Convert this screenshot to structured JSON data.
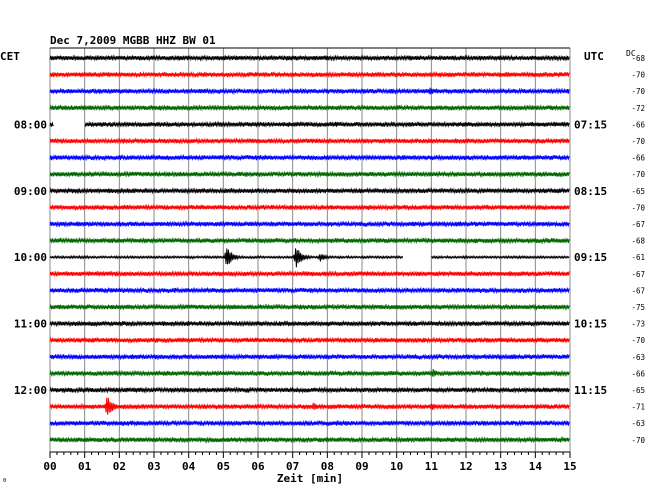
{
  "chart_data": {
    "type": "line",
    "title": "Dec 7,2009   MGBB HHZ BW 01",
    "left_timezone": "CET",
    "right_timezone": "UTC",
    "dc_label": "DC",
    "xlabel": "Zeit [min]",
    "xlim": [
      0,
      15
    ],
    "x_ticks": [
      "00",
      "01",
      "02",
      "03",
      "04",
      "05",
      "06",
      "07",
      "08",
      "09",
      "10",
      "11",
      "12",
      "13",
      "14",
      "15"
    ],
    "row_minutes": 15,
    "series_colors": [
      "#000000",
      "#ff0000",
      "#0000ff",
      "#006600"
    ],
    "rows": [
      {
        "left_time": "",
        "right_time": "",
        "dc": "-68",
        "color": "#000000"
      },
      {
        "left_time": "",
        "right_time": "",
        "dc": "-70",
        "color": "#ff0000"
      },
      {
        "left_time": "",
        "right_time": "",
        "dc": "-70",
        "color": "#0000ff"
      },
      {
        "left_time": "",
        "right_time": "",
        "dc": "-72",
        "color": "#006600"
      },
      {
        "left_time": "08:00",
        "right_time": "07:15",
        "dc": "-66",
        "color": "#000000"
      },
      {
        "left_time": "",
        "right_time": "",
        "dc": "-70",
        "color": "#ff0000"
      },
      {
        "left_time": "",
        "right_time": "",
        "dc": "-66",
        "color": "#0000ff"
      },
      {
        "left_time": "",
        "right_time": "",
        "dc": "-70",
        "color": "#006600"
      },
      {
        "left_time": "09:00",
        "right_time": "08:15",
        "dc": "-65",
        "color": "#000000"
      },
      {
        "left_time": "",
        "right_time": "",
        "dc": "-70",
        "color": "#ff0000"
      },
      {
        "left_time": "",
        "right_time": "",
        "dc": "-67",
        "color": "#0000ff"
      },
      {
        "left_time": "",
        "right_time": "",
        "dc": "-68",
        "color": "#006600"
      },
      {
        "left_time": "10:00",
        "right_time": "09:15",
        "dc": "-61",
        "color": "#000000"
      },
      {
        "left_time": "",
        "right_time": "",
        "dc": "-67",
        "color": "#ff0000"
      },
      {
        "left_time": "",
        "right_time": "",
        "dc": "-67",
        "color": "#0000ff"
      },
      {
        "left_time": "",
        "right_time": "",
        "dc": "-75",
        "color": "#006600"
      },
      {
        "left_time": "11:00",
        "right_time": "10:15",
        "dc": "-73",
        "color": "#000000"
      },
      {
        "left_time": "",
        "right_time": "",
        "dc": "-70",
        "color": "#ff0000"
      },
      {
        "left_time": "",
        "right_time": "",
        "dc": "-63",
        "color": "#0000ff"
      },
      {
        "left_time": "",
        "right_time": "",
        "dc": "-66",
        "color": "#006600"
      },
      {
        "left_time": "12:00",
        "right_time": "11:15",
        "dc": "-65",
        "color": "#000000"
      },
      {
        "left_time": "",
        "right_time": "",
        "dc": "-71",
        "color": "#ff0000"
      },
      {
        "left_time": "",
        "right_time": "",
        "dc": "-63",
        "color": "#0000ff"
      },
      {
        "left_time": "",
        "right_time": "",
        "dc": "-70",
        "color": "#006600"
      }
    ],
    "gaps": [
      {
        "row": 4,
        "start_min": 0.1,
        "end_min": 1.0
      },
      {
        "row": 12,
        "start_min": 10.2,
        "end_min": 11.0
      }
    ],
    "events": [
      {
        "row": 12,
        "minute": 5.1,
        "amplitude": "large"
      },
      {
        "row": 12,
        "minute": 7.1,
        "amplitude": "large"
      },
      {
        "row": 12,
        "minute": 7.8,
        "amplitude": "small"
      },
      {
        "row": 21,
        "minute": 1.65,
        "amplitude": "large"
      },
      {
        "row": 21,
        "minute": 7.6,
        "amplitude": "small"
      },
      {
        "row": 21,
        "minute": 11.0,
        "amplitude": "small"
      },
      {
        "row": 19,
        "minute": 11.05,
        "amplitude": "small"
      },
      {
        "row": 2,
        "minute": 10.95,
        "amplitude": "small"
      }
    ],
    "grid": true,
    "footer_mark": "⁰"
  }
}
